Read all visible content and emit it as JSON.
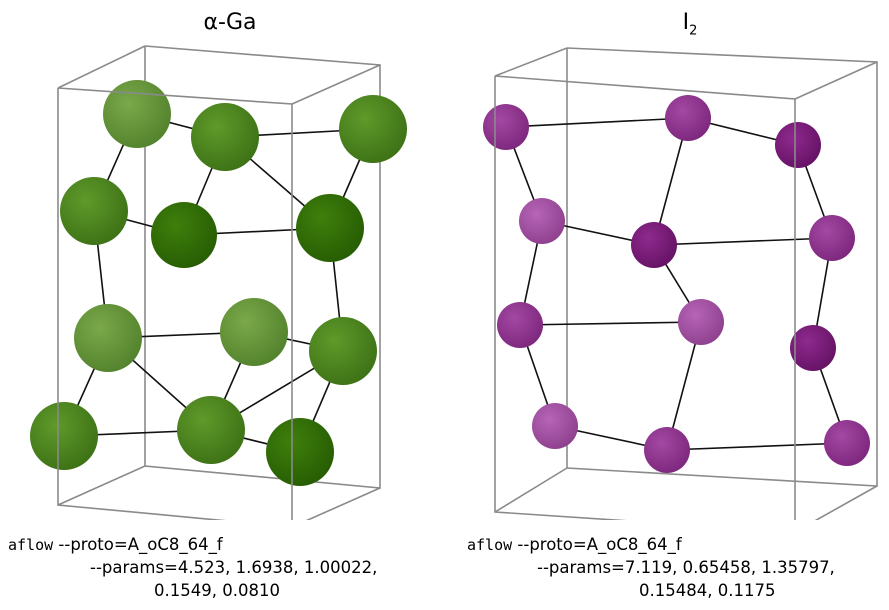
{
  "panels": [
    {
      "title_main": "α-Ga",
      "title_sub": "",
      "command": "aflow",
      "caption_line1": "--proto=A_oC8_64_f",
      "caption_line2": "--params=4.523, 1.6938, 1.00022,",
      "caption_line3": "0.1549, 0.0810",
      "atom_color": "#4e8a1c"
    },
    {
      "title_main": "I",
      "title_sub": "2",
      "command": "aflow",
      "caption_line1": "--proto=A_oC8_64_f",
      "caption_line2": "--params=7.119, 0.65458, 1.35797,",
      "caption_line3": "0.15484, 0.1175",
      "atom_color": "#8e2e8e"
    }
  ]
}
